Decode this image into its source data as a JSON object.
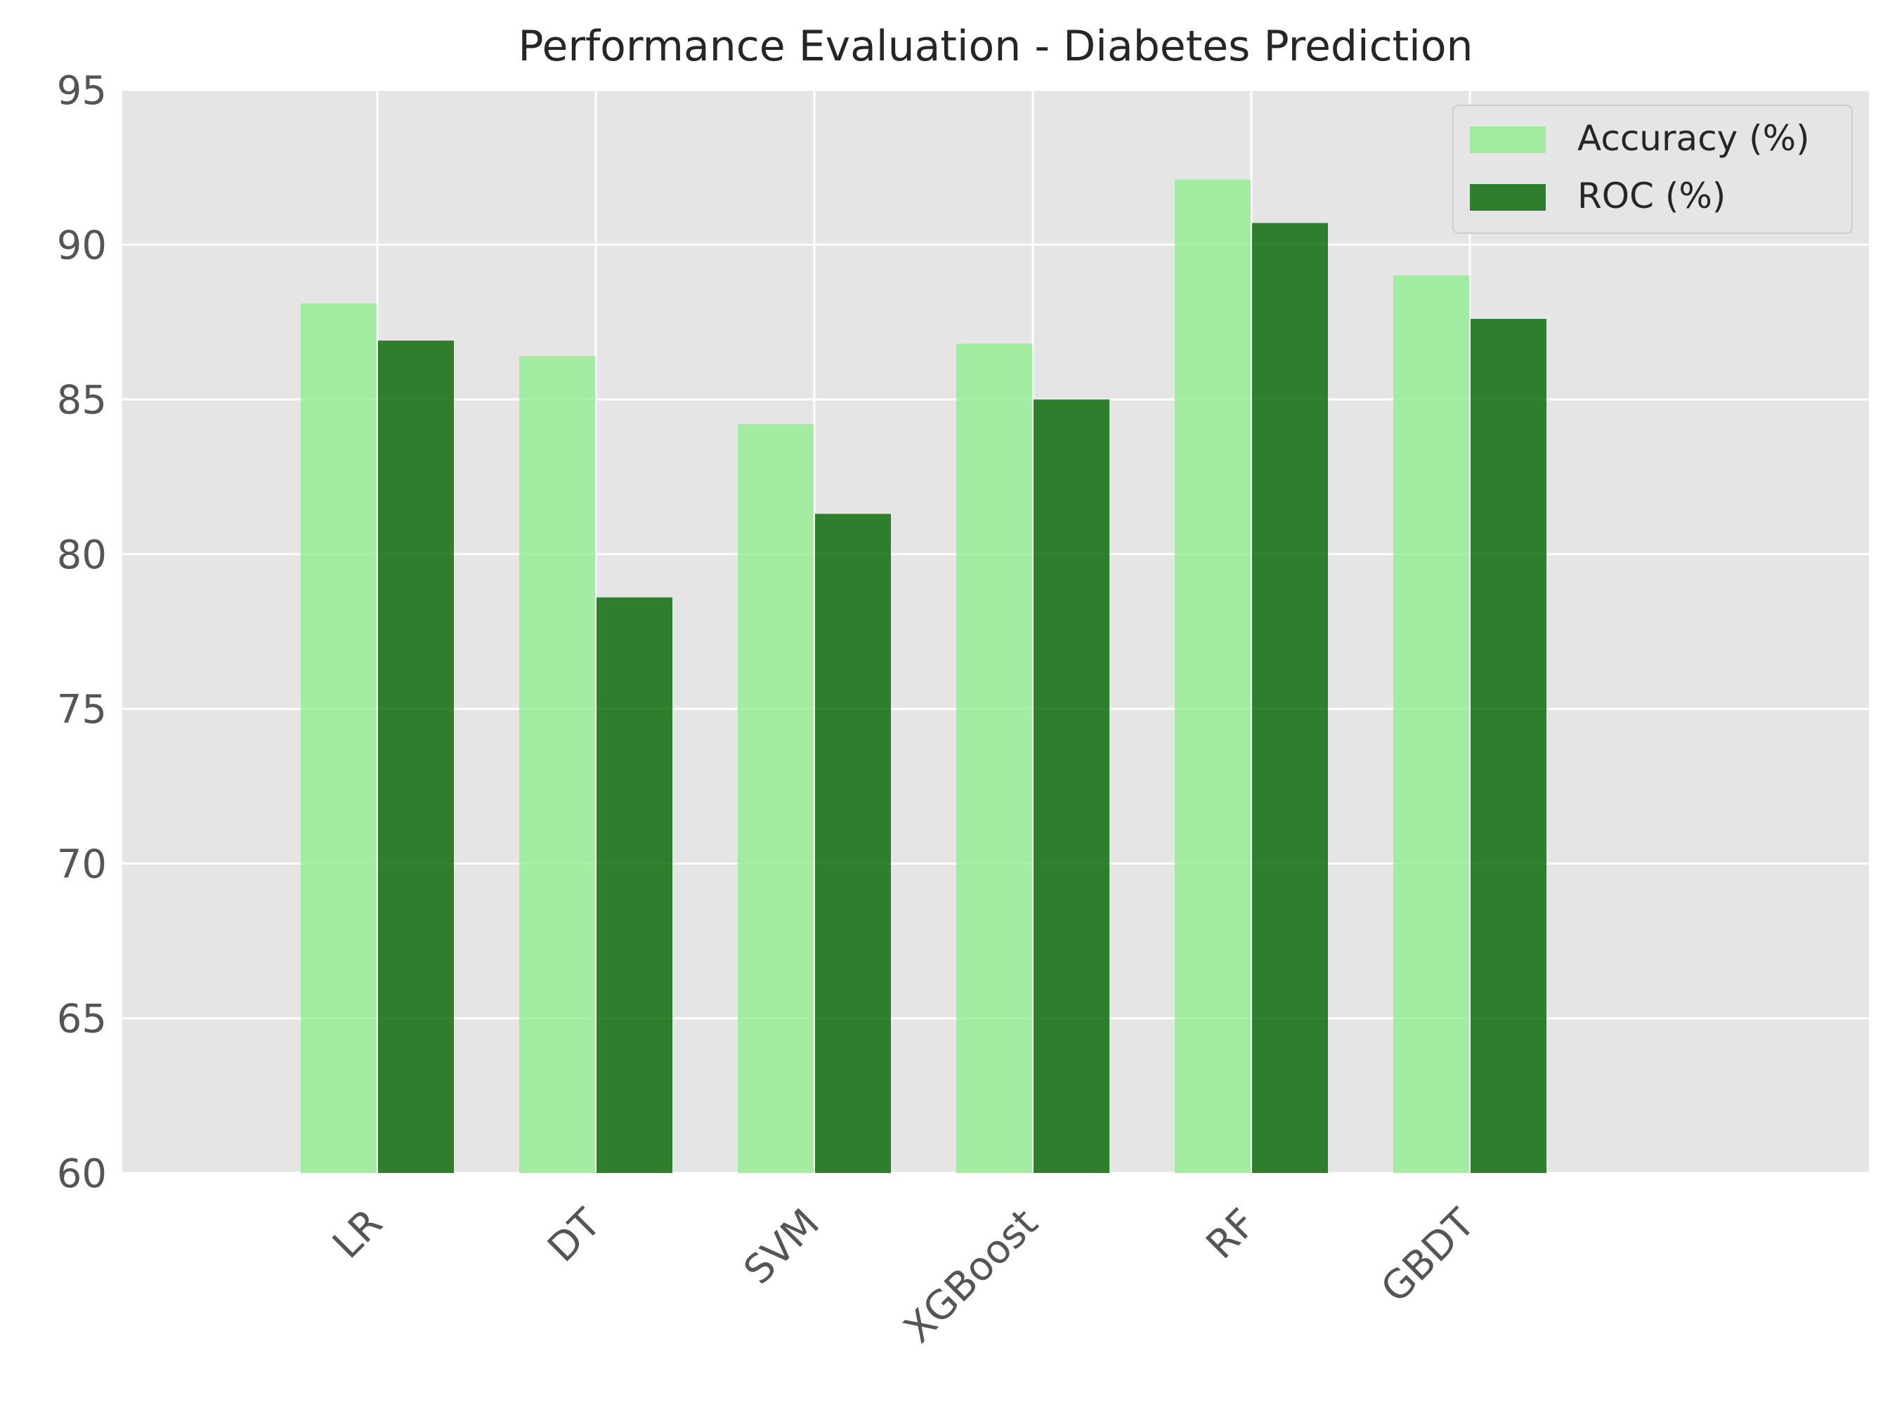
{
  "chart_data": {
    "type": "bar",
    "title": "Performance Evaluation - Diabetes Prediction",
    "xlabel": "",
    "ylabel": "",
    "categories": [
      "LR",
      "DT",
      "SVM",
      "XGBoost",
      "RF",
      "GBDT"
    ],
    "series": [
      {
        "name": "Accuracy (%)",
        "color": "#90ee90",
        "values": [
          88.1,
          86.4,
          84.2,
          86.8,
          92.1,
          89.0
        ]
      },
      {
        "name": "ROC (%)",
        "color": "#006400",
        "values": [
          86.9,
          78.6,
          81.3,
          85.0,
          90.7,
          87.6
        ]
      }
    ],
    "ylim": [
      60,
      95
    ],
    "yticks": [
      "60",
      "65",
      "70",
      "75",
      "80",
      "85",
      "90",
      "95"
    ],
    "grid": true,
    "legend_position": "top-right",
    "xtick_rotation": "45 degrees",
    "background_color": "#e5e5e5",
    "text_color": "#555555",
    "grid_color": "#ffffff"
  }
}
